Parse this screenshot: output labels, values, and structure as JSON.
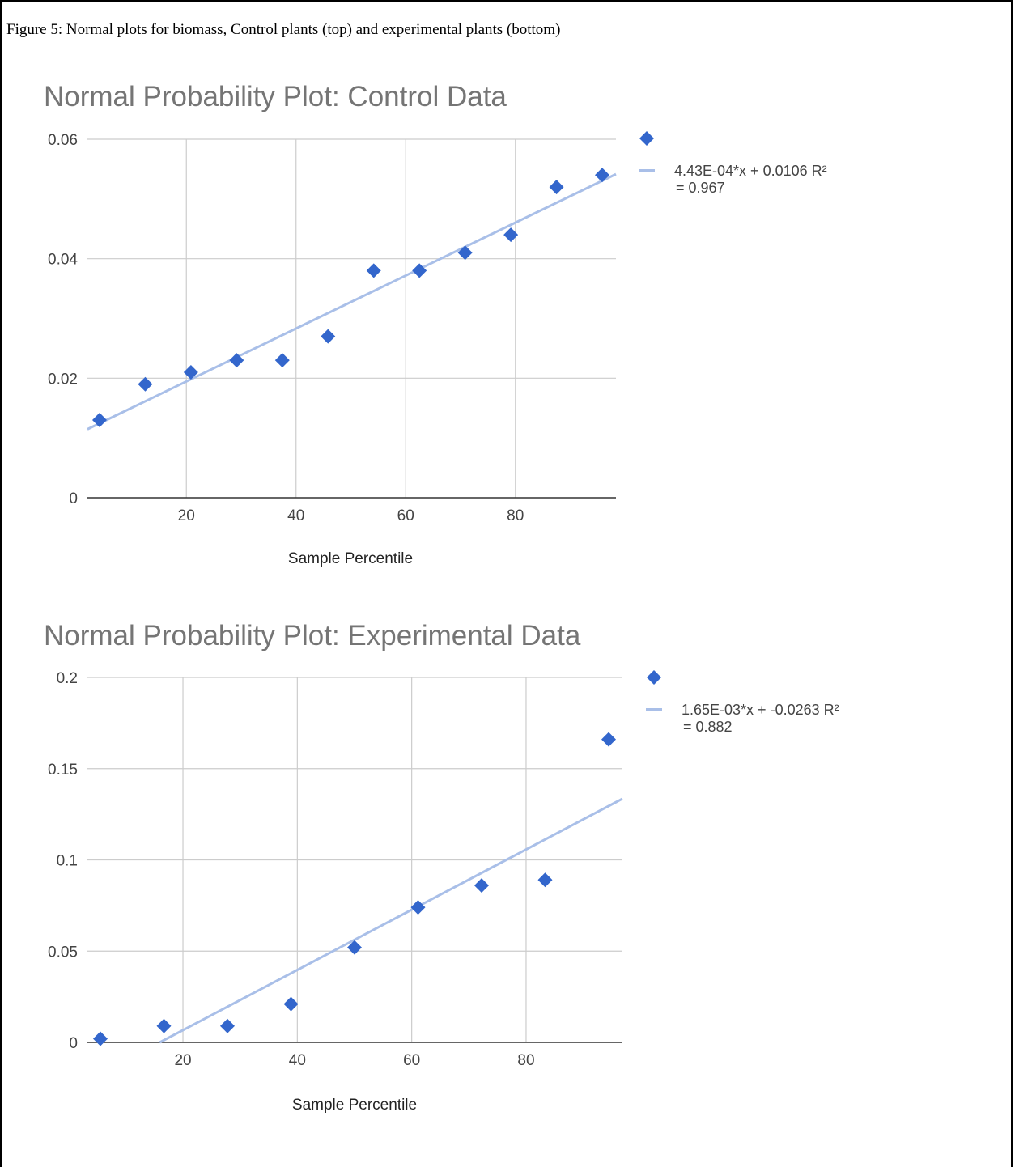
{
  "caption": "Figure 5: Normal plots for biomass, Control plants (top) and experimental plants (bottom)",
  "colors": {
    "points": "#3366cc",
    "trendline": "#a9bfe8",
    "grid": "#cccccc",
    "axis": "#333333"
  },
  "chart_data": [
    {
      "type": "scatter",
      "title": "Normal Probability Plot: Control Data",
      "xlabel": "Sample Percentile",
      "ylabel": "",
      "xlim": [
        4.17,
        95.83
      ],
      "ylim": [
        0,
        0.06
      ],
      "xticks": [
        "20",
        "40",
        "60",
        "80"
      ],
      "xtick_values": [
        20,
        40,
        60,
        80
      ],
      "yticks": [
        "0",
        "0.02",
        "0.04",
        "0.06"
      ],
      "ytick_values": [
        0,
        0.02,
        0.04,
        0.06
      ],
      "grid": true,
      "legend_position": "right",
      "series": [
        {
          "x": [
            4.17,
            12.5,
            20.83,
            29.17,
            37.5,
            45.83,
            54.17,
            62.5,
            70.83,
            79.17,
            87.5,
            95.83
          ],
          "y": [
            0.013,
            0.019,
            0.021,
            0.023,
            0.023,
            0.027,
            0.038,
            0.038,
            0.041,
            0.044,
            0.052,
            0.054
          ]
        }
      ],
      "trendline": {
        "slope": 0.000443,
        "intercept": 0.0106,
        "label": "4.43E-04*x + 0.0106 R²",
        "label2": "= 0.967"
      }
    },
    {
      "type": "scatter",
      "title": "Normal Probability Plot: Experimental Data",
      "xlabel": "Sample Percentile",
      "ylabel": "",
      "xlim": [
        5.56,
        94.44
      ],
      "ylim": [
        0,
        0.2
      ],
      "xticks": [
        "20",
        "40",
        "60",
        "80"
      ],
      "xtick_values": [
        20,
        40,
        60,
        80
      ],
      "yticks": [
        "0",
        "0.05",
        "0.1",
        "0.15",
        "0.2"
      ],
      "ytick_values": [
        0,
        0.05,
        0.1,
        0.15,
        0.2
      ],
      "grid": true,
      "legend_position": "right",
      "series": [
        {
          "x": [
            5.56,
            16.67,
            27.78,
            38.89,
            50.0,
            61.11,
            72.22,
            83.33,
            94.44
          ],
          "y": [
            0.002,
            0.009,
            0.009,
            0.021,
            0.052,
            0.074,
            0.086,
            0.089,
            0.166
          ]
        }
      ],
      "trendline": {
        "slope": 0.00165,
        "intercept": -0.0263,
        "label": "1.65E-03*x + -0.0263 R²",
        "label2": "= 0.882"
      }
    }
  ]
}
